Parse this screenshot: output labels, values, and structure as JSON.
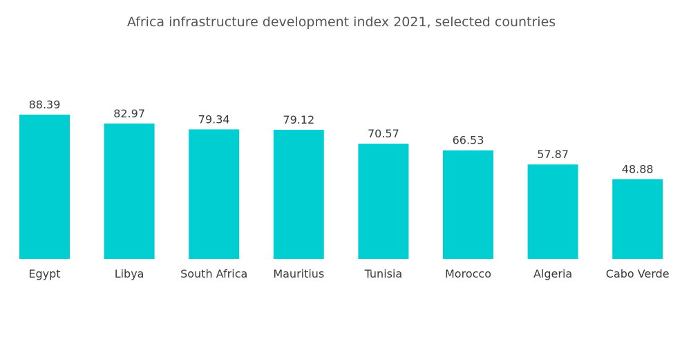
{
  "chart_data": {
    "type": "bar",
    "title": "Africa infrastructure development index 2021, selected countries",
    "xlabel": "",
    "ylabel": "",
    "categories": [
      "Egypt",
      "Libya",
      "South Africa",
      "Mauritius",
      "Tunisia",
      "Morocco",
      "Algeria",
      "Cabo Verde"
    ],
    "values": [
      88.39,
      82.97,
      79.34,
      79.12,
      70.57,
      66.53,
      57.87,
      48.88
    ],
    "value_labels": [
      "88.39",
      "82.97",
      "79.34",
      "79.12",
      "70.57",
      "66.53",
      "57.87",
      "48.88"
    ],
    "ylim": [
      0,
      88.39
    ],
    "grid": false,
    "legend": "none",
    "bar_color": "#00CED1"
  }
}
